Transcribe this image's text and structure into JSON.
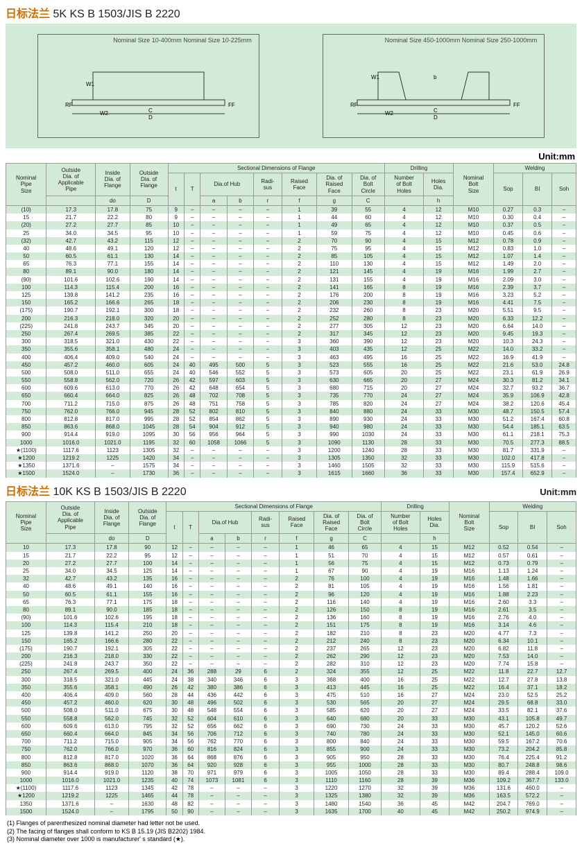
{
  "title_main": "日标法兰",
  "title_sub_5k": "5K  KS B 1503/JIS B 2220",
  "title_sub_10k": "10K  KS B 1503/JIS B 2220",
  "unit_label": "Unit:mm",
  "diagram1_caption": "Nominal Size 10-400mm\nNominal Size 10-225mm",
  "diagram2_caption": "Nominal Size 450-1000mm\nNominal Size 250-1000mm",
  "header_groups": {
    "sectional": "Sectional Dimensions of Flange",
    "drilling": "Drilling",
    "welding": "Welding",
    "hub": "Dia.of Hub"
  },
  "columns": [
    "Nominal\nPipe\nSize",
    "Outside\nDia. of\nApplicable\nPipe",
    "Inside\nDia. of\nFlange",
    "Outside\nDia. of\nFlange",
    "t",
    "T",
    "a",
    "b",
    "Radi-\nsus",
    "Raised\nFace",
    "Dia. of\nRaised\nFace",
    "Dia. of\nBolt\nCircle",
    "Number\nof Bolt\nHoles",
    "Holes\nDia.",
    "Nominal\nBolt\nSize",
    "Sop",
    "BI",
    "Soh"
  ],
  "subheads": [
    "",
    "",
    "do",
    "D",
    "",
    "",
    "",
    "",
    "r",
    "f",
    "g",
    "C",
    "",
    "h",
    "",
    "",
    "",
    ""
  ],
  "rows5k": [
    [
      "(10)",
      "17.3",
      "17.8",
      "75",
      "9",
      "–",
      "–",
      "–",
      "–",
      "1",
      "39",
      "55",
      "4",
      "12",
      "M10",
      "0.27",
      "0.3",
      "–"
    ],
    [
      "15",
      "21.7",
      "22.2",
      "80",
      "9",
      "–",
      "–",
      "–",
      "–",
      "1",
      "44",
      "60",
      "4",
      "12",
      "M10",
      "0.30",
      "0.4",
      "–"
    ],
    [
      "(20)",
      "27.2",
      "27.7",
      "85",
      "10",
      "–",
      "–",
      "–",
      "–",
      "1",
      "49",
      "65",
      "4",
      "12",
      "M10",
      "0.37",
      "0.5",
      "–"
    ],
    [
      "25",
      "34.0",
      "34.5",
      "95",
      "10",
      "–",
      "–",
      "–",
      "–",
      "1",
      "59",
      "75",
      "4",
      "12",
      "M10",
      "0.45",
      "0.6",
      "–"
    ],
    [
      "(32)",
      "42.7",
      "43.2",
      "115",
      "12",
      "–",
      "–",
      "–",
      "–",
      "2",
      "70",
      "90",
      "4",
      "15",
      "M12",
      "0.78",
      "0.9",
      "–"
    ],
    [
      "40",
      "48.6",
      "49.1",
      "120",
      "12",
      "–",
      "–",
      "–",
      "–",
      "2",
      "75",
      "95",
      "4",
      "15",
      "M12",
      "0.83",
      "1.0",
      "–"
    ],
    [
      "50",
      "60.5",
      "61.1",
      "130",
      "14",
      "–",
      "–",
      "–",
      "–",
      "2",
      "85",
      "105",
      "4",
      "15",
      "M12",
      "1.07",
      "1.4",
      "–"
    ],
    [
      "65",
      "76.3",
      "77.1",
      "155",
      "14",
      "–",
      "–",
      "–",
      "–",
      "2",
      "110",
      "130",
      "4",
      "15",
      "M12",
      "1.49",
      "2.0",
      "–"
    ],
    [
      "80",
      "89.1",
      "90.0",
      "180",
      "14",
      "–",
      "–",
      "–",
      "–",
      "2",
      "121",
      "145",
      "4",
      "19",
      "M16",
      "1.99",
      "2.7",
      "–"
    ],
    [
      "(90)",
      "101.6",
      "102.6",
      "190",
      "14",
      "–",
      "–",
      "–",
      "–",
      "2",
      "131",
      "155",
      "4",
      "19",
      "M16",
      "2.09",
      "3.0",
      "–"
    ],
    [
      "100",
      "114.3",
      "115.4",
      "200",
      "16",
      "–",
      "–",
      "–",
      "–",
      "2",
      "141",
      "165",
      "8",
      "19",
      "M16",
      "2.39",
      "3.7",
      "–"
    ],
    [
      "125",
      "139.8",
      "141.2",
      "235",
      "16",
      "–",
      "–",
      "–",
      "–",
      "2",
      "176",
      "200",
      "8",
      "19",
      "M16",
      "3.23",
      "5.2",
      "–"
    ],
    [
      "150",
      "165.2",
      "166.6",
      "265",
      "18",
      "–",
      "–",
      "–",
      "–",
      "2",
      "206",
      "230",
      "8",
      "19",
      "M16",
      "4.41",
      "7.5",
      "–"
    ],
    [
      "(175)",
      "190.7",
      "192.1",
      "300",
      "18",
      "–",
      "–",
      "–",
      "–",
      "2",
      "232",
      "260",
      "8",
      "23",
      "M20",
      "5.51",
      "9.5",
      "–"
    ],
    [
      "200",
      "216.3",
      "218.0",
      "320",
      "20",
      "–",
      "–",
      "–",
      "–",
      "2",
      "252",
      "280",
      "8",
      "23",
      "M20",
      "6.33",
      "12.2",
      "–"
    ],
    [
      "(225)",
      "241.8",
      "243.7",
      "345",
      "20",
      "–",
      "–",
      "–",
      "–",
      "2",
      "277",
      "305",
      "12",
      "23",
      "M20",
      "6.64",
      "14.0",
      "–"
    ],
    [
      "250",
      "267.4",
      "269.5",
      "385",
      "22",
      "–",
      "–",
      "–",
      "–",
      "2",
      "317",
      "345",
      "12",
      "23",
      "M20",
      "9.45",
      "19.3",
      "–"
    ],
    [
      "300",
      "318.5",
      "321.0",
      "430",
      "22",
      "–",
      "–",
      "–",
      "–",
      "3",
      "360",
      "390",
      "12",
      "23",
      "M20",
      "10.3",
      "24.3",
      "–"
    ],
    [
      "350",
      "355.6",
      "358.1",
      "480",
      "24",
      "–",
      "–",
      "–",
      "–",
      "3",
      "403",
      "435",
      "12",
      "25",
      "M22",
      "14.0",
      "33.2",
      "–"
    ],
    [
      "400",
      "406.4",
      "409.0",
      "540",
      "24",
      "–",
      "–",
      "–",
      "–",
      "3",
      "463",
      "495",
      "16",
      "25",
      "M22",
      "16.9",
      "41.9",
      "–"
    ],
    [
      "450",
      "457.2",
      "460.0",
      "605",
      "24",
      "40",
      "495",
      "500",
      "5",
      "3",
      "523",
      "555",
      "16",
      "25",
      "M22",
      "21.6",
      "53.0",
      "24.8"
    ],
    [
      "500",
      "508.0",
      "511.0",
      "655",
      "24",
      "40",
      "546",
      "552",
      "5",
      "3",
      "573",
      "605",
      "20",
      "25",
      "M22",
      "23.1",
      "61.9",
      "26.9"
    ],
    [
      "550",
      "558.8",
      "562.0",
      "720",
      "26",
      "42",
      "597",
      "603",
      "5",
      "3",
      "630",
      "665",
      "20",
      "27",
      "M24",
      "30.3",
      "81.2",
      "34.1"
    ],
    [
      "600",
      "609.6",
      "613.0",
      "770",
      "26",
      "42",
      "648",
      "654",
      "5",
      "3",
      "680",
      "715",
      "20",
      "27",
      "M24",
      "32.7",
      "93.2",
      "36.7"
    ],
    [
      "650",
      "660.4",
      "664.0",
      "825",
      "26",
      "48",
      "702",
      "708",
      "5",
      "3",
      "735",
      "770",
      "24",
      "27",
      "M24",
      "35.9",
      "106.9",
      "42.8"
    ],
    [
      "700",
      "711.2",
      "715.0",
      "875",
      "26",
      "48",
      "751",
      "758",
      "5",
      "3",
      "785",
      "820",
      "24",
      "27",
      "M24",
      "38.2",
      "120.6",
      "45.4"
    ],
    [
      "750",
      "762.0",
      "766.0",
      "945",
      "28",
      "52",
      "802",
      "810",
      "5",
      "3",
      "840",
      "880",
      "24",
      "33",
      "M30",
      "48.7",
      "150.5",
      "57.4"
    ],
    [
      "800",
      "812.8",
      "817.0",
      "995",
      "28",
      "52",
      "854",
      "862",
      "5",
      "3",
      "890",
      "930",
      "24",
      "33",
      "M30",
      "51.2",
      "167.4",
      "60.8"
    ],
    [
      "850",
      "863.6",
      "868.0",
      "1045",
      "28",
      "54",
      "904",
      "912",
      "5",
      "3",
      "940",
      "980",
      "24",
      "33",
      "M30",
      "54.4",
      "185.1",
      "63.5"
    ],
    [
      "900",
      "914.4",
      "919.0",
      "1095",
      "30",
      "56",
      "956",
      "964",
      "5",
      "3",
      "990",
      "1030",
      "24",
      "33",
      "M30",
      "61.1",
      "218.1",
      "75.3"
    ],
    [
      "1000",
      "1016.0",
      "1021.0",
      "1195",
      "32",
      "60",
      "1058",
      "1066",
      "5",
      "3",
      "1090",
      "1130",
      "28",
      "33",
      "M30",
      "70.5",
      "277.3",
      "88.5"
    ],
    [
      "★(1100)",
      "1117.6",
      "1123",
      "1305",
      "32",
      "–",
      "–",
      "–",
      "–",
      "3",
      "1200",
      "1240",
      "28",
      "33",
      "M30",
      "81.7",
      "331.9",
      "–"
    ],
    [
      "★1200",
      "1219.2",
      "1225",
      "1420",
      "34",
      "–",
      "–",
      "–",
      "–",
      "3",
      "1305",
      "1350",
      "32",
      "33",
      "M30",
      "102.0",
      "417.8",
      "–"
    ],
    [
      "★1350",
      "1371.6",
      "–",
      "1575",
      "34",
      "–",
      "–",
      "–",
      "–",
      "3",
      "1460",
      "1505",
      "32",
      "33",
      "M30",
      "115.9",
      "515.6",
      "–"
    ],
    [
      "★1500",
      "1524.0",
      "–",
      "1730",
      "36",
      "–",
      "–",
      "–",
      "–",
      "3",
      "1615",
      "1660",
      "36",
      "33",
      "M30",
      "157.4",
      "652.9",
      "–"
    ]
  ],
  "rows10k": [
    [
      "10",
      "17.3",
      "17.8",
      "90",
      "12",
      "–",
      "–",
      "–",
      "–",
      "1",
      "46",
      "65",
      "4",
      "15",
      "M12",
      "0.52",
      "0.54",
      "–"
    ],
    [
      "15",
      "21.7",
      "22.2",
      "95",
      "12",
      "–",
      "–",
      "–",
      "–",
      "1",
      "51",
      "70",
      "4",
      "15",
      "M12",
      "0.57",
      "0.61",
      "–"
    ],
    [
      "20",
      "27.2",
      "27.7",
      "100",
      "14",
      "–",
      "–",
      "–",
      "–",
      "1",
      "56",
      "75",
      "4",
      "15",
      "M12",
      "0.73",
      "0.79",
      "–"
    ],
    [
      "25",
      "34.0",
      "34.5",
      "125",
      "14",
      "–",
      "–",
      "–",
      "–",
      "1",
      "67",
      "90",
      "4",
      "19",
      "M16",
      "1.13",
      "1.24",
      "–"
    ],
    [
      "32",
      "42.7",
      "43.2",
      "135",
      "16",
      "–",
      "–",
      "–",
      "–",
      "2",
      "76",
      "100",
      "4",
      "19",
      "M16",
      "1.48",
      "1.66",
      "–"
    ],
    [
      "40",
      "48.6",
      "49.1",
      "140",
      "16",
      "–",
      "–",
      "–",
      "–",
      "2",
      "81",
      "105",
      "4",
      "19",
      "M16",
      "1.56",
      "1.81",
      "–"
    ],
    [
      "50",
      "60.5",
      "61.1",
      "155",
      "16",
      "–",
      "–",
      "–",
      "–",
      "2",
      "96",
      "120",
      "4",
      "19",
      "M16",
      "1.88",
      "2.23",
      "–"
    ],
    [
      "65",
      "76.3",
      "77.1",
      "175",
      "18",
      "–",
      "–",
      "–",
      "–",
      "2",
      "116",
      "140",
      "4",
      "19",
      "M16",
      "2.60",
      "3.3",
      "–"
    ],
    [
      "80",
      "89.1",
      "90.0",
      "185",
      "18",
      "–",
      "–",
      "–",
      "–",
      "2",
      "126",
      "150",
      "8",
      "19",
      "M16",
      "2.61",
      "3.5",
      "–"
    ],
    [
      "(90)",
      "101.6",
      "102.6",
      "195",
      "18",
      "–",
      "–",
      "–",
      "–",
      "2",
      "136",
      "160",
      "8",
      "19",
      "M16",
      "2.76",
      "4.0",
      "–"
    ],
    [
      "100",
      "114.3",
      "115.4",
      "210",
      "18",
      "–",
      "–",
      "–",
      "–",
      "2",
      "151",
      "175",
      "8",
      "19",
      "M16",
      "3.14",
      "4.6",
      "–"
    ],
    [
      "125",
      "139.8",
      "141.2",
      "250",
      "20",
      "–",
      "–",
      "–",
      "–",
      "2",
      "182",
      "210",
      "8",
      "23",
      "M20",
      "4.77",
      "7.3",
      "–"
    ],
    [
      "150",
      "165.2",
      "166.6",
      "280",
      "22",
      "–",
      "–",
      "–",
      "–",
      "2",
      "212",
      "240",
      "8",
      "23",
      "M20",
      "6.34",
      "10.1",
      "–"
    ],
    [
      "(175)",
      "190.7",
      "192.1",
      "305",
      "22",
      "–",
      "–",
      "–",
      "–",
      "2",
      "237",
      "265",
      "12",
      "23",
      "M20",
      "6.82",
      "11.8",
      "–"
    ],
    [
      "200",
      "216.3",
      "218.0",
      "330",
      "22",
      "–",
      "–",
      "–",
      "–",
      "2",
      "262",
      "290",
      "12",
      "23",
      "M20",
      "7.53",
      "14.0",
      "–"
    ],
    [
      "(225)",
      "241.8",
      "243.7",
      "350",
      "22",
      "–",
      "–",
      "–",
      "–",
      "2",
      "282",
      "310",
      "12",
      "23",
      "M20",
      "7.74",
      "15.8",
      "–"
    ],
    [
      "250",
      "267.4",
      "269.5",
      "400",
      "24",
      "36",
      "288",
      "29",
      "6",
      "2",
      "324",
      "355",
      "12",
      "25",
      "M22",
      "11.8",
      "22.7",
      "12.7"
    ],
    [
      "300",
      "318.5",
      "321.0",
      "445",
      "24",
      "38",
      "340",
      "346",
      "6",
      "3",
      "368",
      "400",
      "16",
      "25",
      "M22",
      "12.7",
      "27.8",
      "13.8"
    ],
    [
      "350",
      "355.6",
      "358.1",
      "490",
      "26",
      "42",
      "380",
      "386",
      "6",
      "3",
      "413",
      "445",
      "16",
      "25",
      "M22",
      "16.4",
      "37.1",
      "18.2"
    ],
    [
      "400",
      "406.4",
      "409.0",
      "560",
      "28",
      "44",
      "436",
      "442",
      "6",
      "3",
      "475",
      "510",
      "16",
      "27",
      "M24",
      "23.0",
      "52.5",
      "25.2"
    ],
    [
      "450",
      "457.2",
      "460.0",
      "620",
      "30",
      "48",
      "496",
      "502",
      "6",
      "3",
      "530",
      "565",
      "20",
      "27",
      "M24",
      "29.5",
      "68.8",
      "33.0"
    ],
    [
      "500",
      "508.0",
      "511.0",
      "675",
      "30",
      "48",
      "548",
      "554",
      "6",
      "3",
      "585",
      "620",
      "20",
      "27",
      "M24",
      "33.5",
      "82.1",
      "37.6"
    ],
    [
      "550",
      "558.8",
      "562.0",
      "745",
      "32",
      "52",
      "604",
      "610",
      "6",
      "3",
      "640",
      "680",
      "20",
      "33",
      "M30",
      "43.1",
      "105.8",
      "49.7"
    ],
    [
      "600",
      "609.6",
      "613.0",
      "795",
      "32",
      "52",
      "656",
      "662",
      "6",
      "3",
      "690",
      "730",
      "24",
      "33",
      "M30",
      "45.7",
      "120.2",
      "52.6"
    ],
    [
      "650",
      "660.4",
      "664.0",
      "845",
      "34",
      "56",
      "706",
      "712",
      "6",
      "3",
      "740",
      "780",
      "24",
      "33",
      "M30",
      "52.1",
      "145.0",
      "60.6"
    ],
    [
      "700",
      "711.2",
      "715.0",
      "905",
      "34",
      "56",
      "762",
      "770",
      "6",
      "3",
      "800",
      "840",
      "24",
      "33",
      "M30",
      "59.5",
      "167.2",
      "70.6"
    ],
    [
      "750",
      "762.0",
      "766.0",
      "970",
      "36",
      "60",
      "816",
      "824",
      "6",
      "3",
      "855",
      "900",
      "24",
      "33",
      "M30",
      "73.2",
      "204.2",
      "85.8"
    ],
    [
      "800",
      "812.8",
      "817.0",
      "1020",
      "36",
      "64",
      "868",
      "876",
      "6",
      "3",
      "905",
      "950",
      "28",
      "33",
      "M30",
      "76.4",
      "225.4",
      "91.2"
    ],
    [
      "850",
      "863.6",
      "868.0",
      "1070",
      "36",
      "64",
      "920",
      "928",
      "6",
      "3",
      "955",
      "1000",
      "28",
      "33",
      "M30",
      "80.7",
      "248.8",
      "98.6"
    ],
    [
      "900",
      "914.4",
      "919.0",
      "1120",
      "38",
      "70",
      "971",
      "979",
      "6",
      "3",
      "1005",
      "1050",
      "28",
      "33",
      "M30",
      "89.4",
      "288.4",
      "109.0"
    ],
    [
      "1000",
      "1016.0",
      "1021.0",
      "1235",
      "40",
      "74",
      "1073",
      "1081",
      "6",
      "3",
      "1110",
      "1160",
      "28",
      "39",
      "M36",
      "109.2",
      "367.7",
      "133.0"
    ],
    [
      "★(1100)",
      "1117.6",
      "1123",
      "1345",
      "42",
      "78",
      "–",
      "–",
      "–",
      "3",
      "1220",
      "1270",
      "32",
      "39",
      "M36",
      "131.6",
      "460.0",
      "–"
    ],
    [
      "★1200",
      "1219.2",
      "1225",
      "1465",
      "44",
      "78",
      "–",
      "–",
      "–",
      "3",
      "1325",
      "1380",
      "32",
      "39",
      "M36",
      "163.5",
      "572.2",
      "–"
    ],
    [
      "1350",
      "1371.6",
      "–",
      "1630",
      "48",
      "82",
      "–",
      "–",
      "–",
      "3",
      "1480",
      "1540",
      "36",
      "45",
      "M42",
      "204.7",
      "769.0",
      "–"
    ],
    [
      "1500",
      "1524.0",
      "–",
      "1795",
      "50",
      "90",
      "–",
      "–",
      "–",
      "3",
      "1635",
      "1700",
      "40",
      "45",
      "M42",
      "250.2",
      "974.9",
      "–"
    ]
  ],
  "notes": [
    "(1) Flanges of parenthesized nominal diameter had letter not be used.",
    "(2) The facing of flanges shall conform to KS B 15.19 (JIS B2202) 1984.",
    "(3) Nominal diameter over 1000 is manufacturer' s standard (★)."
  ],
  "colors": {
    "title": "#d17000",
    "band": "#d4ead9",
    "border": "#999999"
  }
}
